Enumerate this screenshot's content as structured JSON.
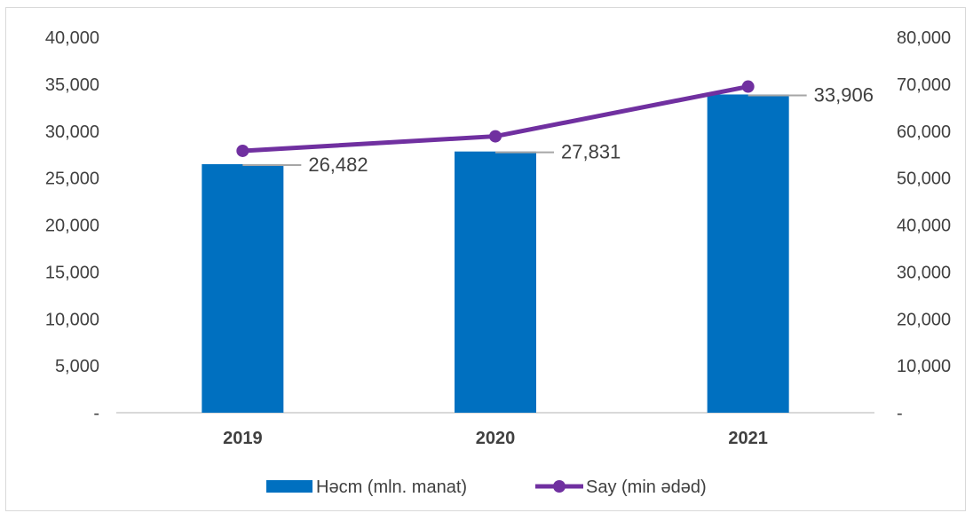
{
  "chart_data": {
    "type": "bar",
    "title": "",
    "categories": [
      "2019",
      "2020",
      "2021"
    ],
    "series": [
      {
        "name": "Həcm (mln. manat)",
        "kind": "bar",
        "axis": "left",
        "color": "#0070C0",
        "values": [
          26482,
          27831,
          33906
        ]
      },
      {
        "name": "Say (min ədəd)",
        "kind": "line",
        "axis": "right",
        "color": "#7030A0",
        "values": [
          55800,
          58900,
          69500
        ]
      }
    ],
    "data_labels": [
      "26,482",
      "27,831",
      "33,906"
    ],
    "y_left": {
      "min": 0,
      "max": 40000,
      "ticks": [
        "-",
        "5,000",
        "10,000",
        "15,000",
        "20,000",
        "25,000",
        "30,000",
        "35,000",
        "40,000"
      ]
    },
    "y_right": {
      "min": 0,
      "max": 80000,
      "ticks": [
        "-",
        "10,000",
        "20,000",
        "30,000",
        "40,000",
        "50,000",
        "60,000",
        "70,000",
        "80,000"
      ]
    },
    "grid": false,
    "legend_position": "bottom"
  }
}
